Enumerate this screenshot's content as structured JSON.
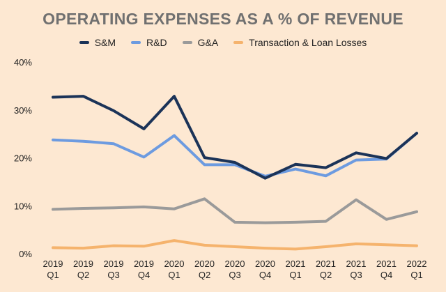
{
  "chart_data": {
    "type": "line",
    "title": "OPERATING EXPENSES AS A % OF REVENUE",
    "categories": [
      [
        "2019",
        "Q1"
      ],
      [
        "2019",
        "Q2"
      ],
      [
        "2019",
        "Q3"
      ],
      [
        "2019",
        "Q4"
      ],
      [
        "2020",
        "Q1"
      ],
      [
        "2020",
        "Q2"
      ],
      [
        "2020",
        "Q3"
      ],
      [
        "2020",
        "Q4"
      ],
      [
        "2021",
        "Q1"
      ],
      [
        "2021",
        "Q2"
      ],
      [
        "2021",
        "Q3"
      ],
      [
        "2021",
        "Q4"
      ],
      [
        "2022",
        "Q1"
      ]
    ],
    "ylim": [
      0,
      40
    ],
    "yticks": [
      0,
      10,
      20,
      30,
      40
    ],
    "ytick_labels": [
      "0%",
      "10%",
      "20%",
      "30%",
      "40%"
    ],
    "grid": false,
    "legend_position": "top-center",
    "series": [
      {
        "name": "S&M",
        "color": "#1b3358",
        "values": [
          32.8,
          33.0,
          30.0,
          26.2,
          33.0,
          20.2,
          19.2,
          15.9,
          18.8,
          18.1,
          21.2,
          20.0,
          25.3
        ]
      },
      {
        "name": "R&D",
        "color": "#6d9be0",
        "values": [
          23.9,
          23.6,
          23.1,
          20.3,
          24.8,
          18.7,
          18.7,
          16.3,
          17.8,
          16.4,
          19.7,
          19.9,
          25.3
        ]
      },
      {
        "name": "G&A",
        "color": "#9a9a9a",
        "values": [
          9.4,
          9.6,
          9.7,
          9.9,
          9.5,
          11.6,
          6.7,
          6.6,
          6.7,
          6.9,
          11.4,
          7.3,
          8.9
        ]
      },
      {
        "name": "Transaction & Loan Losses",
        "color": "#f5b36d",
        "values": [
          1.4,
          1.3,
          1.8,
          1.7,
          2.9,
          1.9,
          1.6,
          1.3,
          1.1,
          1.6,
          2.2,
          2.0,
          1.8
        ]
      }
    ]
  }
}
